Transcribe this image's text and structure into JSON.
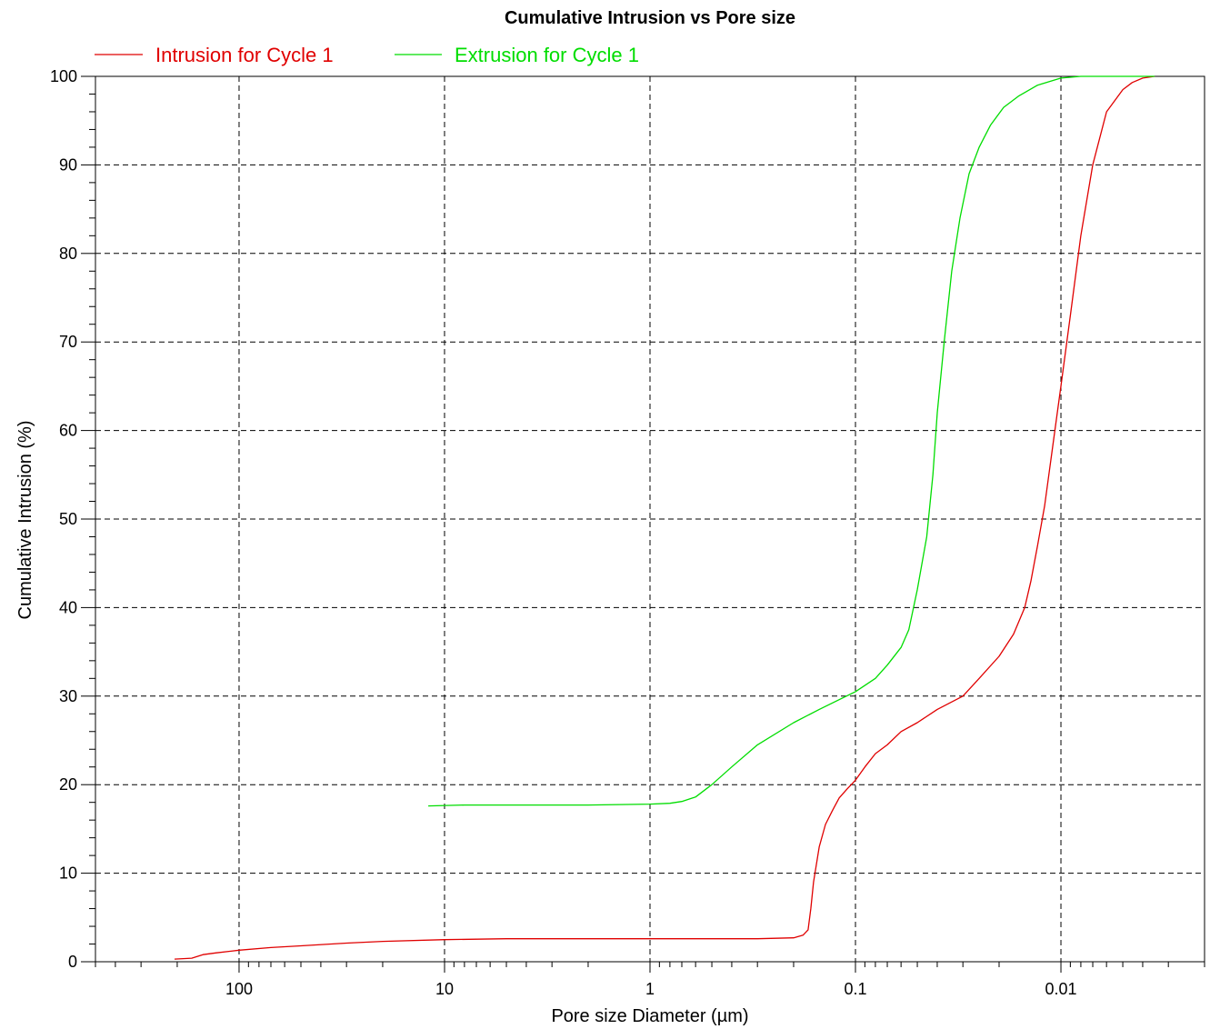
{
  "chart_data": {
    "type": "line",
    "title": "Cumulative Intrusion vs Pore size",
    "xlabel": "Pore size Diameter (µm)",
    "ylabel": "Cumulative Intrusion (%)",
    "x_scale": "log",
    "x_reversed": true,
    "xlim": [
      500,
      0.002
    ],
    "ylim": [
      0,
      100
    ],
    "x_ticks": [
      100,
      10,
      1,
      0.1,
      0.01
    ],
    "x_tick_labels": [
      "100",
      "10",
      "1",
      "0.1",
      "0.01"
    ],
    "y_ticks": [
      0,
      10,
      20,
      30,
      40,
      50,
      60,
      70,
      80,
      90,
      100
    ],
    "y_tick_labels": [
      "0",
      "10",
      "20",
      "30",
      "40",
      "50",
      "60",
      "70",
      "80",
      "90",
      "100"
    ],
    "grid": true,
    "legend_position": "top-left",
    "series": [
      {
        "name": "Intrusion for Cycle 1",
        "color": "#e00000",
        "points": [
          [
            206,
            0.3
          ],
          [
            170,
            0.4
          ],
          [
            150,
            0.8
          ],
          [
            130,
            1.0
          ],
          [
            100,
            1.3
          ],
          [
            70,
            1.6
          ],
          [
            50,
            1.8
          ],
          [
            30,
            2.1
          ],
          [
            20,
            2.3
          ],
          [
            10,
            2.5
          ],
          [
            5,
            2.6
          ],
          [
            1,
            2.6
          ],
          [
            0.3,
            2.6
          ],
          [
            0.2,
            2.7
          ],
          [
            0.18,
            3.0
          ],
          [
            0.17,
            3.6
          ],
          [
            0.165,
            6.0
          ],
          [
            0.16,
            9.0
          ],
          [
            0.15,
            13.0
          ],
          [
            0.14,
            15.5
          ],
          [
            0.13,
            17.0
          ],
          [
            0.12,
            18.5
          ],
          [
            0.11,
            19.5
          ],
          [
            0.1,
            20.5
          ],
          [
            0.09,
            22.0
          ],
          [
            0.08,
            23.5
          ],
          [
            0.07,
            24.5
          ],
          [
            0.06,
            26.0
          ],
          [
            0.05,
            27.0
          ],
          [
            0.04,
            28.5
          ],
          [
            0.03,
            30.0
          ],
          [
            0.025,
            32.0
          ],
          [
            0.02,
            34.5
          ],
          [
            0.017,
            37.0
          ],
          [
            0.015,
            40.0
          ],
          [
            0.014,
            43.0
          ],
          [
            0.013,
            47.0
          ],
          [
            0.012,
            51.5
          ],
          [
            0.011,
            58.0
          ],
          [
            0.01,
            65.0
          ],
          [
            0.009,
            73.0
          ],
          [
            0.008,
            82.0
          ],
          [
            0.007,
            90.0
          ],
          [
            0.006,
            96.0
          ],
          [
            0.005,
            98.5
          ],
          [
            0.0045,
            99.3
          ],
          [
            0.004,
            99.8
          ],
          [
            0.0035,
            100
          ]
        ]
      },
      {
        "name": "Extrusion for Cycle 1",
        "color": "#00dd00",
        "points": [
          [
            12,
            17.6
          ],
          [
            8,
            17.7
          ],
          [
            5,
            17.7
          ],
          [
            3,
            17.7
          ],
          [
            2,
            17.7
          ],
          [
            1,
            17.8
          ],
          [
            0.8,
            17.9
          ],
          [
            0.7,
            18.1
          ],
          [
            0.6,
            18.6
          ],
          [
            0.5,
            20.0
          ],
          [
            0.4,
            22.0
          ],
          [
            0.3,
            24.5
          ],
          [
            0.2,
            27.0
          ],
          [
            0.15,
            28.5
          ],
          [
            0.1,
            30.5
          ],
          [
            0.08,
            32.0
          ],
          [
            0.07,
            33.5
          ],
          [
            0.06,
            35.5
          ],
          [
            0.055,
            37.5
          ],
          [
            0.05,
            42.0
          ],
          [
            0.045,
            48.0
          ],
          [
            0.042,
            55.0
          ],
          [
            0.04,
            62.0
          ],
          [
            0.037,
            70.0
          ],
          [
            0.034,
            78.0
          ],
          [
            0.031,
            84.0
          ],
          [
            0.028,
            89.0
          ],
          [
            0.025,
            92.0
          ],
          [
            0.022,
            94.5
          ],
          [
            0.019,
            96.5
          ],
          [
            0.016,
            97.8
          ],
          [
            0.013,
            99.0
          ],
          [
            0.01,
            99.8
          ],
          [
            0.008,
            100
          ],
          [
            0.004,
            100
          ],
          [
            0.0035,
            100
          ]
        ]
      }
    ]
  }
}
